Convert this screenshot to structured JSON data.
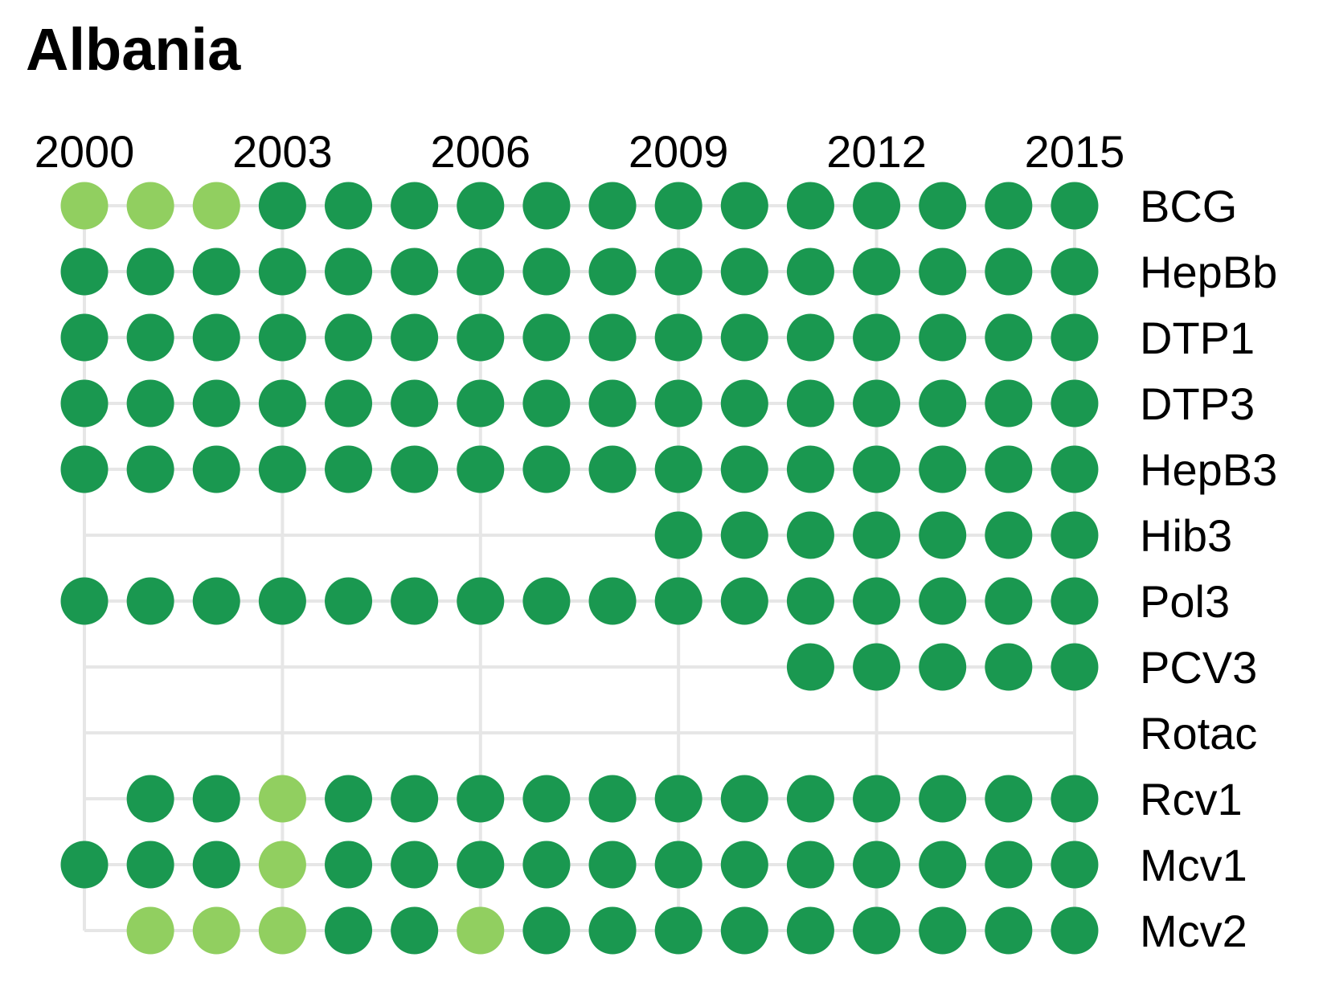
{
  "chart_data": {
    "type": "dot-matrix",
    "title": "Albania",
    "years": [
      2000,
      2001,
      2002,
      2003,
      2004,
      2005,
      2006,
      2007,
      2008,
      2009,
      2010,
      2011,
      2012,
      2013,
      2014,
      2015
    ],
    "x_tick_labels": [
      "2000",
      "2003",
      "2006",
      "2009",
      "2012",
      "2015"
    ],
    "x_ticks": [
      2000,
      2003,
      2006,
      2009,
      2012,
      2015
    ],
    "colors": {
      "high": "#1a9850",
      "low": "#91cf60",
      "grid": "#e6e6e6"
    },
    "rows": [
      {
        "label": "BCG",
        "values": [
          "low",
          "low",
          "low",
          "high",
          "high",
          "high",
          "high",
          "high",
          "high",
          "high",
          "high",
          "high",
          "high",
          "high",
          "high",
          "high"
        ]
      },
      {
        "label": "HepBb",
        "values": [
          "high",
          "high",
          "high",
          "high",
          "high",
          "high",
          "high",
          "high",
          "high",
          "high",
          "high",
          "high",
          "high",
          "high",
          "high",
          "high"
        ]
      },
      {
        "label": "DTP1",
        "values": [
          "high",
          "high",
          "high",
          "high",
          "high",
          "high",
          "high",
          "high",
          "high",
          "high",
          "high",
          "high",
          "high",
          "high",
          "high",
          "high"
        ]
      },
      {
        "label": "DTP3",
        "values": [
          "high",
          "high",
          "high",
          "high",
          "high",
          "high",
          "high",
          "high",
          "high",
          "high",
          "high",
          "high",
          "high",
          "high",
          "high",
          "high"
        ]
      },
      {
        "label": "HepB3",
        "values": [
          "high",
          "high",
          "high",
          "high",
          "high",
          "high",
          "high",
          "high",
          "high",
          "high",
          "high",
          "high",
          "high",
          "high",
          "high",
          "high"
        ]
      },
      {
        "label": "Hib3",
        "values": [
          null,
          null,
          null,
          null,
          null,
          null,
          null,
          null,
          null,
          "high",
          "high",
          "high",
          "high",
          "high",
          "high",
          "high"
        ]
      },
      {
        "label": "Pol3",
        "values": [
          "high",
          "high",
          "high",
          "high",
          "high",
          "high",
          "high",
          "high",
          "high",
          "high",
          "high",
          "high",
          "high",
          "high",
          "high",
          "high"
        ]
      },
      {
        "label": "PCV3",
        "values": [
          null,
          null,
          null,
          null,
          null,
          null,
          null,
          null,
          null,
          null,
          null,
          "high",
          "high",
          "high",
          "high",
          "high"
        ]
      },
      {
        "label": "Rotac",
        "values": [
          null,
          null,
          null,
          null,
          null,
          null,
          null,
          null,
          null,
          null,
          null,
          null,
          null,
          null,
          null,
          null
        ]
      },
      {
        "label": "Rcv1",
        "values": [
          null,
          "high",
          "high",
          "low",
          "high",
          "high",
          "high",
          "high",
          "high",
          "high",
          "high",
          "high",
          "high",
          "high",
          "high",
          "high"
        ]
      },
      {
        "label": "Mcv1",
        "values": [
          "high",
          "high",
          "high",
          "low",
          "high",
          "high",
          "high",
          "high",
          "high",
          "high",
          "high",
          "high",
          "high",
          "high",
          "high",
          "high"
        ]
      },
      {
        "label": "Mcv2",
        "values": [
          null,
          "low",
          "low",
          "low",
          "high",
          "high",
          "low",
          "high",
          "high",
          "high",
          "high",
          "high",
          "high",
          "high",
          "high",
          "high"
        ]
      }
    ]
  }
}
